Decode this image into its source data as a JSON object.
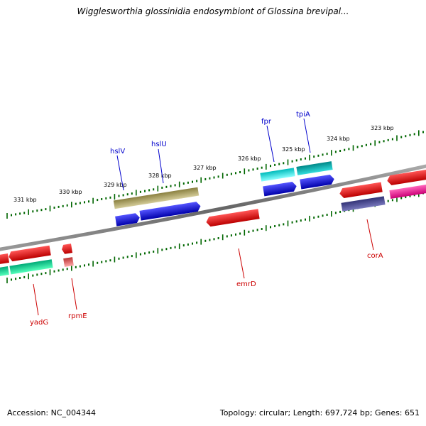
{
  "map": {
    "title": "Wigglesworthia glossinidia endosymbiont of Glossina brevipal...",
    "accession": "Accession: NC_004344",
    "stats": "Topology: circular; Length: 697,724 bp; Genes: 651"
  },
  "ticks": [
    {
      "label": "331 kbp"
    },
    {
      "label": "330 kbp"
    },
    {
      "label": "329 kbp"
    },
    {
      "label": "328 kbp"
    },
    {
      "label": "327 kbp"
    },
    {
      "label": "326 kbp"
    },
    {
      "label": "325 kbp"
    },
    {
      "label": "324 kbp"
    },
    {
      "label": "323 kbp"
    }
  ],
  "genes": [
    {
      "name": "hslV",
      "strand": "forward"
    },
    {
      "name": "hslU",
      "strand": "forward"
    },
    {
      "name": "fpr",
      "strand": "forward"
    },
    {
      "name": "tpiA",
      "strand": "forward"
    },
    {
      "name": "yadG",
      "strand": "reverse"
    },
    {
      "name": "rpmE",
      "strand": "reverse"
    },
    {
      "name": "emrD",
      "strand": "reverse"
    },
    {
      "name": "corA",
      "strand": "reverse"
    }
  ],
  "colors": {
    "backbone": "#808080",
    "ticks": "#006600",
    "forward_label": "#0000cc",
    "reverse_label": "#cc0000",
    "blue": "#0000ee",
    "red": "#ee0000",
    "olive": "#b8b070",
    "cyan": "#00eeee",
    "teal": "#00bbbb",
    "green_cyan": "#00ee99",
    "pink": "#ff3399",
    "navy": "#404080",
    "light_red": "#ee7777"
  }
}
